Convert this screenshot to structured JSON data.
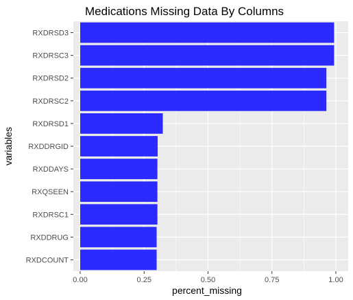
{
  "chart_data": {
    "type": "bar",
    "orientation": "horizontal",
    "title": "Medications Missing Data By Columns",
    "xlabel": "percent_missing",
    "ylabel": "variables",
    "categories": [
      "RXDRSD3",
      "RXDRSC3",
      "RXDRSD2",
      "RXDRSC2",
      "RXDRSD1",
      "RXDDRGID",
      "RXDDAYS",
      "RXQSEEN",
      "RXDRSC1",
      "RXDDRUG",
      "RXDCOUNT"
    ],
    "values": [
      0.993,
      0.993,
      0.963,
      0.963,
      0.323,
      0.303,
      0.302,
      0.302,
      0.302,
      0.299,
      0.299
    ],
    "xlim": [
      0,
      1
    ],
    "xticks": [
      0,
      0.25,
      0.5,
      0.75,
      1
    ],
    "xtick_labels": [
      "0.00",
      "0.25",
      "0.50",
      "0.75",
      "1.00"
    ],
    "grid": true,
    "colors": {
      "bar": "#2b2bff",
      "panel_bg": "#ebebeb",
      "grid": "#ffffff"
    }
  }
}
